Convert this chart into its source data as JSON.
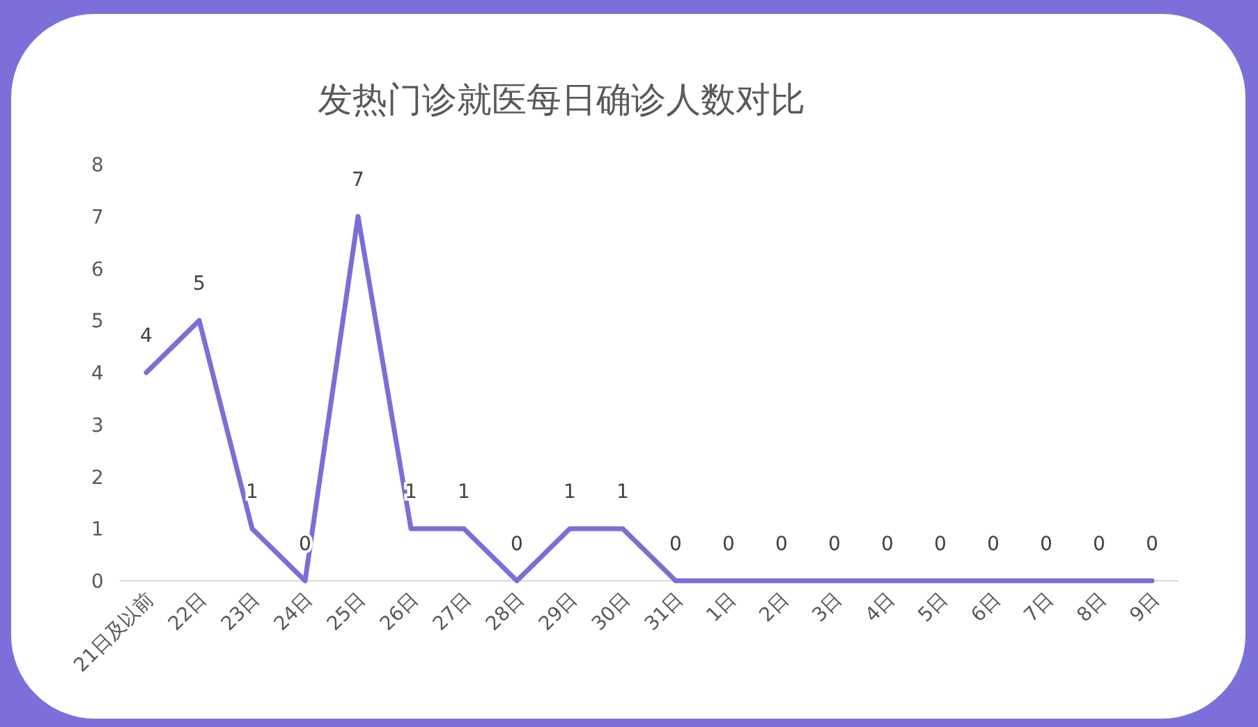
{
  "chart_data": {
    "type": "line",
    "title": "发热门诊就医每日确诊人数对比",
    "categories": [
      "21日及以前",
      "22日",
      "23日",
      "24日",
      "25日",
      "26日",
      "27日",
      "28日",
      "29日",
      "30日",
      "31日",
      "1日",
      "2日",
      "3日",
      "4日",
      "5日",
      "6日",
      "7日",
      "8日",
      "9日"
    ],
    "values": [
      4,
      5,
      1,
      0,
      7,
      1,
      1,
      0,
      1,
      1,
      0,
      0,
      0,
      0,
      0,
      0,
      0,
      0,
      0,
      0
    ],
    "color": "#7a6fd6",
    "ylim": [
      0,
      8
    ],
    "yticks": [
      0,
      1,
      2,
      3,
      4,
      5,
      6,
      7,
      8
    ],
    "data_labels": true
  }
}
